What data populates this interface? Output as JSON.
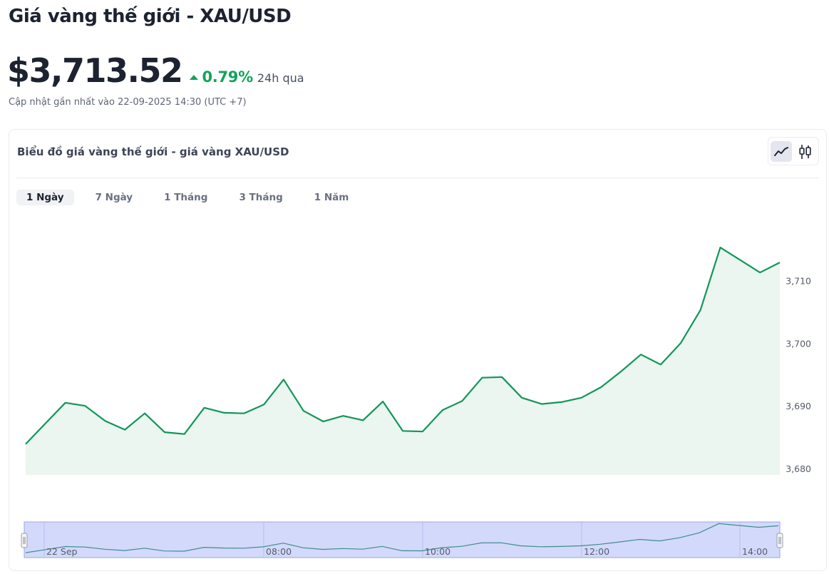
{
  "page": {
    "title": "Giá vàng thế giới - XAU/USD",
    "price": "$3,713.52",
    "change_pct": "0.79%",
    "change_period": "24h qua",
    "updated": "Cập nhật gần nhất vào 22-09-2025 14:30 (UTC +7)"
  },
  "card": {
    "title": "Biểu đồ giá vàng thế giới - giá vàng XAU/USD",
    "ranges": [
      "1 Ngày",
      "7 Ngày",
      "1 Tháng",
      "3 Tháng",
      "1 Năm"
    ],
    "active_range": "1 Ngày",
    "chart_modes": [
      "line-chart-icon",
      "candlestick-chart-icon"
    ],
    "active_mode": "line-chart-icon"
  },
  "colors": {
    "line": "#13955a",
    "area": "#eaf6ef",
    "up": "#13a35a",
    "navigator_fill": "#d3d9fb",
    "navigator_border": "#9aa6ea"
  },
  "chart_data": {
    "type": "area",
    "title": "",
    "xlabel": "",
    "ylabel": "",
    "x_ticks": [
      "22 Sep",
      "08:00",
      "10:00",
      "12:00",
      "14:00"
    ],
    "y_ticks": [
      3680,
      3690,
      3700,
      3710
    ],
    "ylim": [
      3679,
      3711
    ],
    "grid": false,
    "series": [
      {
        "values": [
          3683.9,
          3687.2,
          3690.5,
          3690.0,
          3687.6,
          3686.2,
          3688.8,
          3685.8,
          3685.5,
          3689.7,
          3688.9,
          3688.8,
          3690.2,
          3694.2,
          3689.2,
          3687.5,
          3688.4,
          3687.7,
          3690.7,
          3686.0,
          3685.9,
          3689.3,
          3690.8,
          3694.5,
          3694.6,
          3691.3,
          3690.3,
          3690.6,
          3691.3,
          3693.0,
          3695.5,
          3698.2,
          3696.6,
          3700.0,
          3705.3,
          3715.3,
          3713.3,
          3711.3,
          3712.9
        ]
      }
    ],
    "navigator": {
      "labels": [
        "22 Sep",
        "08:00",
        "10:00",
        "12:00",
        "14:00"
      ],
      "selection": [
        0,
        1
      ]
    }
  }
}
